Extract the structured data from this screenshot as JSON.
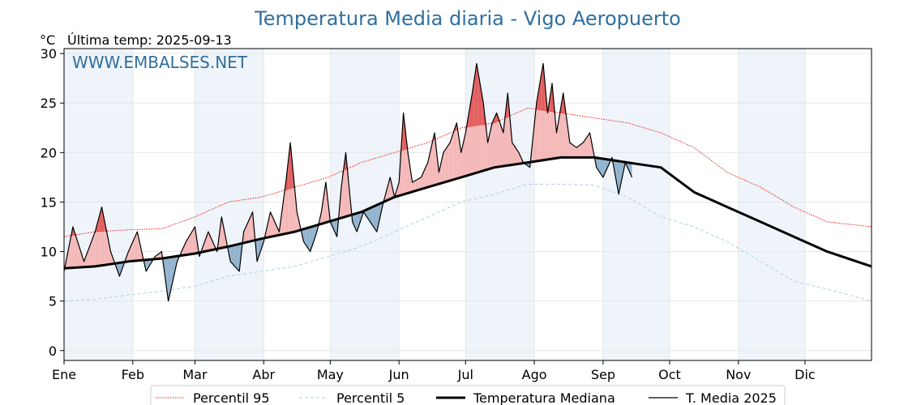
{
  "title": "Temperatura Media diaria - Vigo Aeropuerto",
  "unit": "°C",
  "last_temp": "Última temp: 2025-09-13",
  "watermark": "WWW.EMBALSES.NET",
  "chart_data": {
    "type": "line",
    "x_unit": "day of year",
    "ylim": [
      -1,
      30.5
    ],
    "y_ticks": [
      "0",
      "5",
      "10",
      "15",
      "20",
      "25",
      "30"
    ],
    "month_labels": [
      "Ene",
      "Feb",
      "Mar",
      "Abr",
      "May",
      "Jun",
      "Jul",
      "Ago",
      "Sep",
      "Oct",
      "Nov",
      "Dic"
    ],
    "month_start_days": [
      1,
      32,
      60,
      91,
      121,
      152,
      182,
      213,
      244,
      274,
      305,
      335
    ],
    "shaded_month_bands": [
      [
        1,
        31
      ],
      [
        60,
        90
      ],
      [
        121,
        151
      ],
      [
        182,
        212
      ],
      [
        244,
        273
      ],
      [
        305,
        334
      ]
    ],
    "grid": true,
    "legend_position": "bottom-center",
    "series": [
      {
        "name": "Percentil 95",
        "style": "dotted",
        "color": "#e8231c",
        "points": [
          [
            1,
            11.5
          ],
          [
            15,
            12
          ],
          [
            30,
            12.2
          ],
          [
            45,
            12.3
          ],
          [
            60,
            13.5
          ],
          [
            75,
            15
          ],
          [
            90,
            15.5
          ],
          [
            105,
            16.5
          ],
          [
            120,
            17.5
          ],
          [
            135,
            19
          ],
          [
            150,
            20
          ],
          [
            165,
            21
          ],
          [
            180,
            22.5
          ],
          [
            195,
            23
          ],
          [
            210,
            24.5
          ],
          [
            225,
            24
          ],
          [
            240,
            23.5
          ],
          [
            255,
            23
          ],
          [
            270,
            22
          ],
          [
            285,
            20.5
          ],
          [
            300,
            18
          ],
          [
            315,
            16.5
          ],
          [
            330,
            14.5
          ],
          [
            345,
            13
          ],
          [
            365,
            12.5
          ]
        ]
      },
      {
        "name": "Percentil 5",
        "style": "dashed",
        "color": "#a9d3e3",
        "points": [
          [
            1,
            5
          ],
          [
            15,
            5.2
          ],
          [
            30,
            5.6
          ],
          [
            45,
            6
          ],
          [
            60,
            6.5
          ],
          [
            75,
            7.5
          ],
          [
            90,
            8
          ],
          [
            105,
            8.5
          ],
          [
            120,
            9.5
          ],
          [
            135,
            10.5
          ],
          [
            150,
            12
          ],
          [
            165,
            13.5
          ],
          [
            180,
            15
          ],
          [
            195,
            15.8
          ],
          [
            210,
            16.8
          ],
          [
            225,
            16.8
          ],
          [
            240,
            16.7
          ],
          [
            255,
            15.5
          ],
          [
            270,
            13.5
          ],
          [
            285,
            12.5
          ],
          [
            300,
            11
          ],
          [
            315,
            9
          ],
          [
            330,
            7
          ],
          [
            345,
            6.2
          ],
          [
            365,
            5
          ]
        ]
      },
      {
        "name": "Temperatura Mediana",
        "style": "thick",
        "color": "#000000",
        "points": [
          [
            1,
            8.3
          ],
          [
            15,
            8.5
          ],
          [
            30,
            9
          ],
          [
            45,
            9.3
          ],
          [
            60,
            9.8
          ],
          [
            75,
            10.5
          ],
          [
            90,
            11.3
          ],
          [
            105,
            12
          ],
          [
            120,
            13
          ],
          [
            135,
            14
          ],
          [
            150,
            15.5
          ],
          [
            165,
            16.5
          ],
          [
            180,
            17.5
          ],
          [
            195,
            18.5
          ],
          [
            210,
            19
          ],
          [
            225,
            19.5
          ],
          [
            240,
            19.5
          ],
          [
            255,
            19
          ],
          [
            270,
            18.5
          ],
          [
            285,
            16
          ],
          [
            300,
            14.5
          ],
          [
            315,
            13
          ],
          [
            330,
            11.5
          ],
          [
            345,
            10
          ],
          [
            365,
            8.5
          ]
        ]
      },
      {
        "name": "T. Media 2025",
        "style": "thin",
        "color": "#000000",
        "points": [
          [
            1,
            8
          ],
          [
            5,
            12.5
          ],
          [
            10,
            9
          ],
          [
            15,
            12
          ],
          [
            18,
            14.5
          ],
          [
            22,
            10
          ],
          [
            26,
            7.5
          ],
          [
            30,
            10
          ],
          [
            34,
            12
          ],
          [
            38,
            8
          ],
          [
            42,
            9.5
          ],
          [
            45,
            10
          ],
          [
            48,
            5
          ],
          [
            52,
            9
          ],
          [
            56,
            11
          ],
          [
            60,
            12.5
          ],
          [
            62,
            9.5
          ],
          [
            66,
            12
          ],
          [
            70,
            10
          ],
          [
            72,
            13.5
          ],
          [
            76,
            9
          ],
          [
            80,
            8
          ],
          [
            82,
            12
          ],
          [
            86,
            14
          ],
          [
            88,
            9
          ],
          [
            91,
            11
          ],
          [
            94,
            14
          ],
          [
            98,
            12
          ],
          [
            101,
            17
          ],
          [
            103,
            21
          ],
          [
            106,
            14
          ],
          [
            109,
            11
          ],
          [
            112,
            10
          ],
          [
            115,
            12
          ],
          [
            117,
            14
          ],
          [
            119,
            17
          ],
          [
            121,
            13
          ],
          [
            124,
            11.5
          ],
          [
            126,
            16.5
          ],
          [
            128,
            20
          ],
          [
            131,
            13
          ],
          [
            133,
            12
          ],
          [
            136,
            14
          ],
          [
            139,
            13
          ],
          [
            142,
            12
          ],
          [
            145,
            15
          ],
          [
            148,
            17.5
          ],
          [
            150,
            15.5
          ],
          [
            152,
            17
          ],
          [
            154,
            24
          ],
          [
            156,
            20
          ],
          [
            158,
            17
          ],
          [
            162,
            17.5
          ],
          [
            165,
            19
          ],
          [
            168,
            22
          ],
          [
            170,
            18
          ],
          [
            172,
            20
          ],
          [
            175,
            21
          ],
          [
            178,
            23
          ],
          [
            180,
            20
          ],
          [
            182,
            22
          ],
          [
            185,
            26
          ],
          [
            187,
            29
          ],
          [
            190,
            25
          ],
          [
            192,
            21
          ],
          [
            194,
            23
          ],
          [
            196,
            24
          ],
          [
            199,
            22
          ],
          [
            201,
            26
          ],
          [
            203,
            21
          ],
          [
            206,
            20
          ],
          [
            208,
            19
          ],
          [
            211,
            18.5
          ],
          [
            214,
            25
          ],
          [
            217,
            29
          ],
          [
            219,
            24
          ],
          [
            221,
            27
          ],
          [
            223,
            22
          ],
          [
            226,
            26
          ],
          [
            229,
            21
          ],
          [
            232,
            20.5
          ],
          [
            235,
            21
          ],
          [
            238,
            22
          ],
          [
            241,
            18.5
          ],
          [
            244,
            17.5
          ],
          [
            248,
            19.5
          ],
          [
            251,
            15.8
          ],
          [
            254,
            19
          ],
          [
            257,
            17.5
          ]
        ]
      }
    ]
  },
  "legend": [
    {
      "label": "Percentil 95",
      "style": "dotted",
      "color": "#e8231c"
    },
    {
      "label": "Percentil 5",
      "style": "dashed",
      "color": "#a9d3e3"
    },
    {
      "label": "Temperatura Mediana",
      "style": "thick",
      "color": "#000000"
    },
    {
      "label": "T. Media 2025",
      "style": "thin",
      "color": "#000000"
    }
  ],
  "colors": {
    "above_median_fill": "#f4b6b6",
    "above_p95_fill": "#e35a5a",
    "below_median_fill": "#8fb0cc",
    "band_fill": "#eef4fa",
    "title": "#2f6f9f"
  }
}
